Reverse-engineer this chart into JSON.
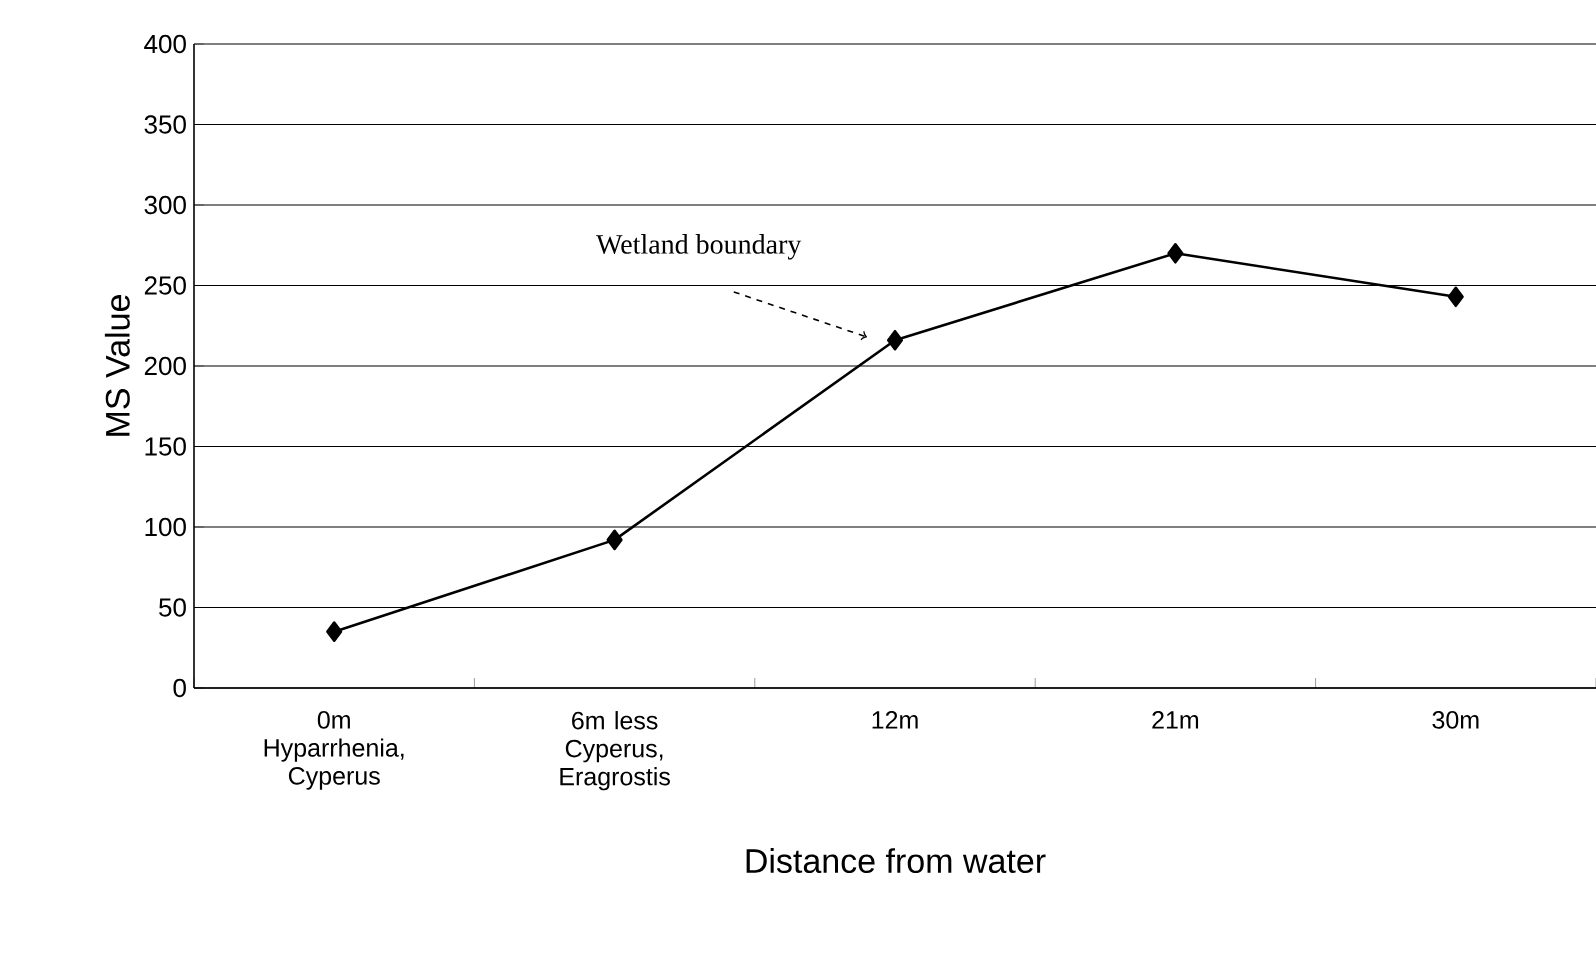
{
  "chart_data": {
    "type": "line",
    "categories": [
      "0m Hyparrhenia, Cyperus",
      "6m less Cyperus, Eragrostis",
      "12m",
      "21m",
      "30m"
    ],
    "series": [
      {
        "color": "#000000",
        "values": [
          35,
          92,
          216,
          270,
          243
        ]
      }
    ],
    "xlabel": "Distance from water",
    "ylabel": "MS Value",
    "ylim": [
      0,
      400
    ],
    "yticks": [
      0,
      50,
      100,
      150,
      200,
      250,
      300,
      350,
      400
    ],
    "grid": "y",
    "marker": "diamond",
    "line_style": "solid",
    "annotations": [
      "Wetland boundary"
    ]
  }
}
